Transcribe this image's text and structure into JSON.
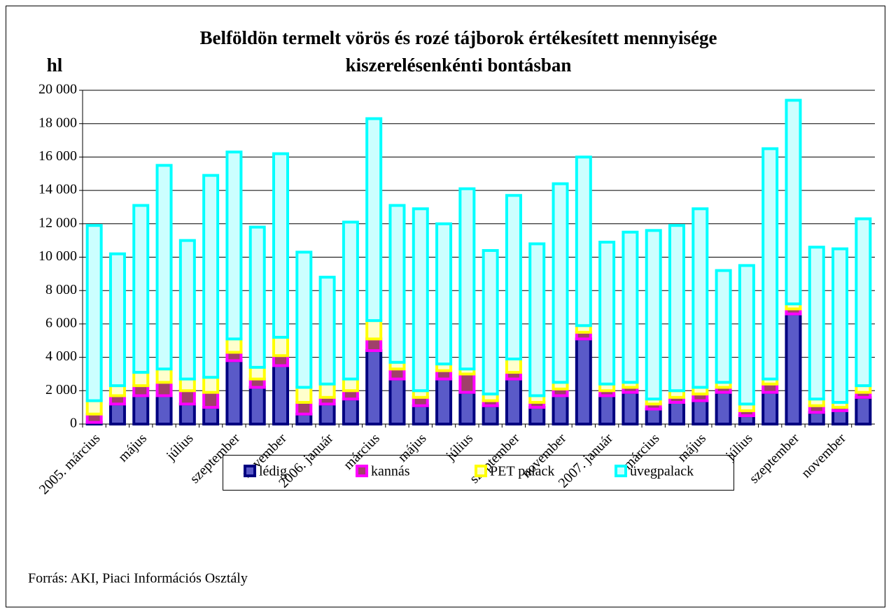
{
  "chart_data": {
    "type": "stacked_bar",
    "title": [
      "Belföldön termelt vörös és rozé tájborok értékesített mennyisége",
      "kiszerelésenkénti bontásban"
    ],
    "y_label": "hl",
    "source": "Forrás: AKI, Piaci Információs Osztály",
    "categories": [
      "2005. március",
      null,
      "május",
      null,
      "július",
      null,
      "szeptember",
      null,
      "november",
      null,
      "2006. január",
      null,
      "március",
      null,
      "május",
      null,
      "július",
      null,
      "szeptember",
      null,
      "november",
      null,
      "2007. január",
      null,
      "március",
      null,
      "május",
      null,
      "július",
      null,
      "szeptember",
      null,
      "november",
      null
    ],
    "series": [
      {
        "name": "lédig",
        "color": "#000080",
        "fill": "#5a5ac8",
        "values": [
          100,
          1200,
          1700,
          1700,
          1200,
          1000,
          3800,
          2200,
          3500,
          600,
          1200,
          1500,
          4400,
          2700,
          1100,
          2700,
          1900,
          1100,
          2700,
          1000,
          1700,
          5100,
          1700,
          1900,
          900,
          1300,
          1400,
          1900,
          500,
          1900,
          6600,
          700,
          800,
          1600
        ]
      },
      {
        "name": "kannás",
        "color": "#ff00ff",
        "fill": "#a0406a",
        "values": [
          500,
          500,
          600,
          800,
          800,
          900,
          500,
          500,
          600,
          700,
          400,
          500,
          700,
          600,
          500,
          500,
          1100,
          300,
          400,
          300,
          400,
          400,
          300,
          300,
          300,
          300,
          400,
          300,
          300,
          500,
          300,
          400,
          200,
          300
        ]
      },
      {
        "name": "PET palack",
        "color": "#ffff00",
        "fill": "#ffffcc",
        "values": [
          800,
          600,
          800,
          800,
          700,
          900,
          800,
          700,
          1100,
          900,
          800,
          700,
          1100,
          400,
          400,
          400,
          300,
          400,
          800,
          400,
          400,
          400,
          400,
          300,
          300,
          400,
          400,
          300,
          400,
          300,
          300,
          400,
          300,
          400
        ]
      },
      {
        "name": "üvegpalack",
        "color": "#00ffff",
        "fill": "#ccffff",
        "values": [
          10500,
          7900,
          10000,
          12200,
          8300,
          12100,
          11200,
          8400,
          11000,
          8100,
          6400,
          9400,
          12100,
          9400,
          10900,
          8400,
          10800,
          8600,
          9800,
          9100,
          11900,
          10100,
          8500,
          9000,
          10100,
          9900,
          10700,
          6700,
          8300,
          13800,
          12200,
          9100,
          9200,
          10000
        ]
      }
    ],
    "ylim": [
      0,
      20000
    ],
    "yticks": [
      0,
      {
        "value": 2000,
        "label": "2 000"
      },
      {
        "value": 4000,
        "label": "4 000"
      },
      {
        "value": 6000,
        "label": "6 000"
      },
      {
        "value": 8000,
        "label": "8 000"
      },
      {
        "value": 10000,
        "label": "10 000"
      },
      {
        "value": 12000,
        "label": "12 000"
      },
      {
        "value": 14000,
        "label": "14 000"
      },
      {
        "value": 16000,
        "label": "16 000"
      },
      {
        "value": 18000,
        "label": "18 000"
      },
      {
        "value": 20000,
        "label": "20 000"
      }
    ],
    "grid": true
  }
}
